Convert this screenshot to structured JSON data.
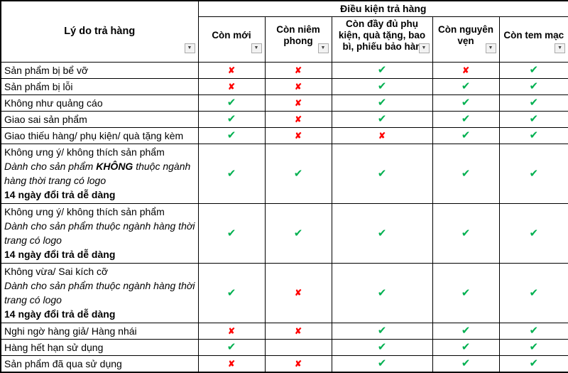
{
  "header": {
    "reason": "Lý do trả hàng",
    "conditions_group": "Điều kiện trả hàng",
    "columns": [
      "Còn mới",
      "Còn niêm phong",
      "Còn đầy đủ phụ kiện, quà tặng, bao bì, phiếu bảo hàn",
      "Còn nguyên vẹn",
      "Còn tem mạc"
    ]
  },
  "rows": [
    {
      "lines": [
        {
          "style": "regular",
          "text": "Sản phẩm bị bể vỡ"
        }
      ],
      "marks": [
        "cross",
        "cross",
        "check",
        "cross",
        "check"
      ]
    },
    {
      "lines": [
        {
          "style": "regular",
          "text": "Sản phẩm bị lỗi"
        }
      ],
      "marks": [
        "cross",
        "cross",
        "check",
        "check",
        "check"
      ]
    },
    {
      "lines": [
        {
          "style": "regular",
          "text": "Không như quảng cáo"
        }
      ],
      "marks": [
        "check",
        "cross",
        "check",
        "check",
        "check"
      ]
    },
    {
      "lines": [
        {
          "style": "regular",
          "text": "Giao sai sản phẩm"
        }
      ],
      "marks": [
        "check",
        "cross",
        "check",
        "check",
        "check"
      ]
    },
    {
      "lines": [
        {
          "style": "regular",
          "text": "Giao thiếu hàng/ phụ kiện/ quà tặng kèm"
        }
      ],
      "marks": [
        "check",
        "cross",
        "cross",
        "check",
        "check"
      ]
    },
    {
      "lines": [
        {
          "style": "regular",
          "text": "Không ưng ý/ không thích sản phẩm"
        },
        {
          "style": "italic",
          "segments": [
            {
              "text": "Dành cho sản phẩm "
            },
            {
              "text": "KHÔNG",
              "bold": true
            },
            {
              "text": " thuộc ngành hàng thời trang có logo"
            }
          ]
        },
        {
          "style": "bold",
          "text": "14 ngày đổi trả dễ dàng"
        }
      ],
      "marks": [
        "check",
        "check",
        "check",
        "check",
        "check"
      ]
    },
    {
      "lines": [
        {
          "style": "regular",
          "text": "Không ưng ý/ không thích sản phẩm"
        },
        {
          "style": "italic",
          "text": "Dành cho sản phẩm thuộc ngành hàng thời trang có logo"
        },
        {
          "style": "bold",
          "text": "14 ngày đổi trả dễ dàng"
        }
      ],
      "marks": [
        "check",
        "check",
        "check",
        "check",
        "check"
      ]
    },
    {
      "lines": [
        {
          "style": "regular",
          "text": "Không vừa/ Sai kích cỡ"
        },
        {
          "style": "italic",
          "text": "Dành cho sản phẩm thuộc ngành hàng thời trang có logo"
        },
        {
          "style": "bold",
          "text": "14 ngày đổi trả dễ dàng"
        }
      ],
      "marks": [
        "check",
        "cross",
        "check",
        "check",
        "check"
      ]
    },
    {
      "lines": [
        {
          "style": "regular",
          "text": "Nghi ngờ hàng giả/ Hàng nhái"
        }
      ],
      "marks": [
        "cross",
        "cross",
        "check",
        "check",
        "check"
      ]
    },
    {
      "lines": [
        {
          "style": "regular",
          "text": "Hàng hết hạn sử dụng"
        }
      ],
      "marks": [
        "check",
        "none",
        "check",
        "check",
        "check"
      ]
    },
    {
      "lines": [
        {
          "style": "regular",
          "text": "Sản phẩm đã qua sử dụng"
        }
      ],
      "marks": [
        "cross",
        "cross",
        "check",
        "check",
        "check"
      ]
    }
  ],
  "icons": {
    "check": "✔",
    "cross": "✘",
    "filter_arrow": "▼"
  },
  "colors": {
    "check": "#00B050",
    "cross": "#FF0000"
  }
}
